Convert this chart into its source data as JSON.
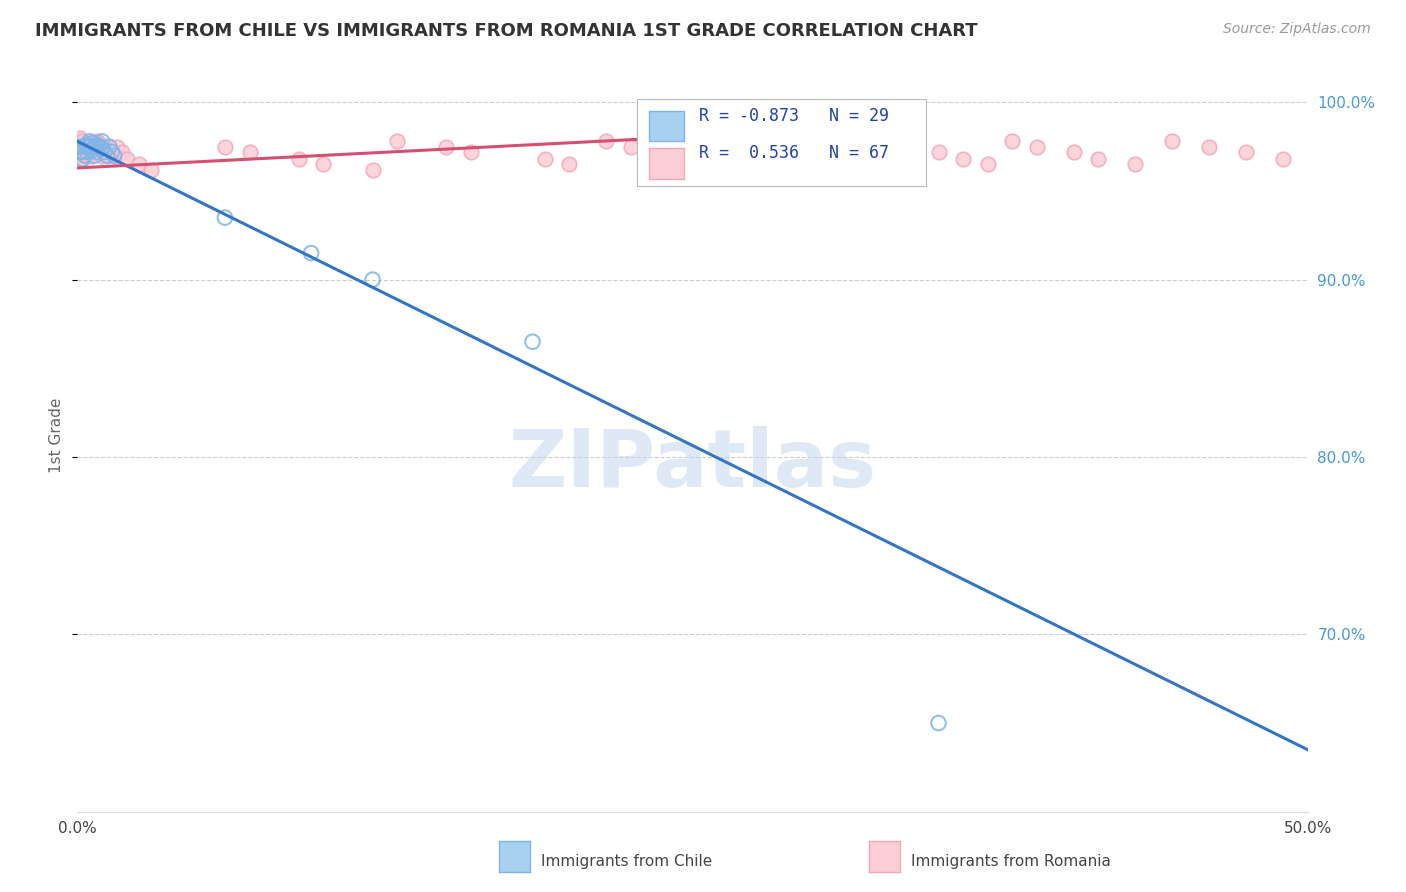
{
  "title": "IMMIGRANTS FROM CHILE VS IMMIGRANTS FROM ROMANIA 1ST GRADE CORRELATION CHART",
  "source": "Source: ZipAtlas.com",
  "ylabel": "1st Grade",
  "xlim": [
    0.0,
    0.5
  ],
  "ylim": [
    0.6,
    1.025
  ],
  "xtick_positions": [
    0.0,
    0.1,
    0.2,
    0.3,
    0.4,
    0.5
  ],
  "xticklabels": [
    "0.0%",
    "",
    "",
    "",
    "",
    "50.0%"
  ],
  "ytick_positions": [
    0.7,
    0.8,
    0.9,
    1.0
  ],
  "right_yticklabels": [
    "70.0%",
    "80.0%",
    "90.0%",
    "100.0%"
  ],
  "legend_r_chile": "-0.873",
  "legend_n_chile": "29",
  "legend_r_romania": "0.536",
  "legend_n_romania": "67",
  "chile_face_color": "#A8D0F0",
  "chile_edge_color": "#7EB6E8",
  "romania_face_color": "#FBCDD6",
  "romania_edge_color": "#F4A7B9",
  "chile_line_color": "#3575C8",
  "romania_line_color": "#D45070",
  "watermark": "ZIPatlas",
  "grid_color": "#CCCCCC",
  "title_color": "#333333",
  "axis_label_color": "#666666",
  "right_tick_color": "#4499DD",
  "chile_line_x0": 0.0,
  "chile_line_y0": 0.978,
  "chile_line_x1": 0.5,
  "chile_line_y1": 0.635,
  "romania_line_x0": 0.0,
  "romania_line_y0": 0.963,
  "romania_line_x1": 0.24,
  "romania_line_y1": 0.98,
  "chile_scatter_x": [
    0.001,
    0.001,
    0.002,
    0.002,
    0.003,
    0.003,
    0.004,
    0.004,
    0.005,
    0.005,
    0.006,
    0.006,
    0.007,
    0.007,
    0.008,
    0.008,
    0.009,
    0.01,
    0.01,
    0.011,
    0.012,
    0.013,
    0.014,
    0.015,
    0.06,
    0.095,
    0.12,
    0.185,
    0.35
  ],
  "chile_scatter_y": [
    0.972,
    0.975,
    0.968,
    0.972,
    0.97,
    0.975,
    0.972,
    0.976,
    0.975,
    0.978,
    0.973,
    0.977,
    0.97,
    0.975,
    0.972,
    0.976,
    0.975,
    0.974,
    0.978,
    0.972,
    0.97,
    0.975,
    0.972,
    0.97,
    0.935,
    0.915,
    0.9,
    0.865,
    0.65
  ],
  "romania_scatter_x": [
    0.001,
    0.001,
    0.001,
    0.002,
    0.002,
    0.002,
    0.003,
    0.003,
    0.004,
    0.004,
    0.005,
    0.005,
    0.006,
    0.006,
    0.007,
    0.007,
    0.008,
    0.008,
    0.009,
    0.009,
    0.01,
    0.01,
    0.011,
    0.012,
    0.013,
    0.014,
    0.015,
    0.016,
    0.018,
    0.02,
    0.025,
    0.03,
    0.06,
    0.07,
    0.09,
    0.1,
    0.12,
    0.13,
    0.15,
    0.16,
    0.19,
    0.2,
    0.215,
    0.225,
    0.24,
    0.25,
    0.26,
    0.27,
    0.28,
    0.29,
    0.305,
    0.315,
    0.325,
    0.335,
    0.35,
    0.36,
    0.37,
    0.38,
    0.39,
    0.405,
    0.415,
    0.43,
    0.445,
    0.46,
    0.475,
    0.49,
    0.505
  ],
  "romania_scatter_y": [
    0.97,
    0.975,
    0.98,
    0.968,
    0.972,
    0.978,
    0.972,
    0.976,
    0.97,
    0.975,
    0.972,
    0.977,
    0.97,
    0.975,
    0.972,
    0.976,
    0.975,
    0.978,
    0.973,
    0.977,
    0.97,
    0.975,
    0.972,
    0.97,
    0.975,
    0.972,
    0.97,
    0.975,
    0.972,
    0.968,
    0.965,
    0.962,
    0.975,
    0.972,
    0.968,
    0.965,
    0.962,
    0.978,
    0.975,
    0.972,
    0.968,
    0.965,
    0.978,
    0.975,
    0.972,
    0.968,
    0.965,
    0.962,
    0.975,
    0.972,
    0.968,
    0.965,
    0.978,
    0.975,
    0.972,
    0.968,
    0.965,
    0.978,
    0.975,
    0.972,
    0.968,
    0.965,
    0.978,
    0.975,
    0.972,
    0.968,
    0.965
  ]
}
